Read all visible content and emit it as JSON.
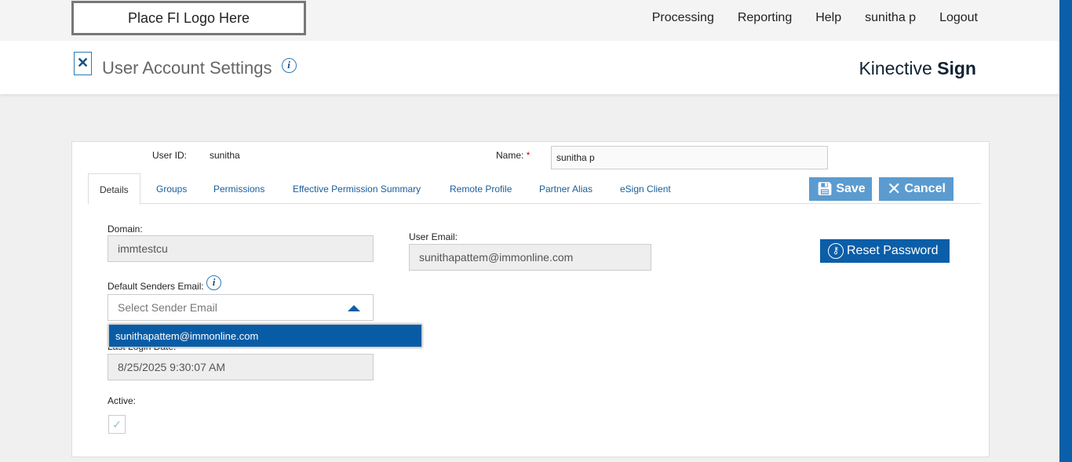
{
  "topbar": {
    "logo": "Place FI Logo Here",
    "nav": [
      "Processing",
      "Reporting",
      "Help",
      "sunitha p",
      "Logout"
    ]
  },
  "header": {
    "title": "User Account Settings",
    "brand_light": "Kinective",
    "brand_bold": "Sign"
  },
  "form": {
    "user_id_label": "User ID:",
    "user_id": "sunitha",
    "name_label": "Name:",
    "required": "*",
    "name_value": "sunitha p",
    "tabs": [
      "Details",
      "Groups",
      "Permissions",
      "Effective Permission Summary",
      "Remote Profile",
      "Partner Alias",
      "eSign Client"
    ],
    "save": "Save",
    "cancel": "Cancel",
    "reset": "Reset Password",
    "domain_label": "Domain:",
    "domain": "immtestcu",
    "email_label": "User Email:",
    "email": "sunithapattem@immonline.com",
    "sender_label": "Default Senders Email:",
    "sender_placeholder": "Select Sender Email",
    "sender_option": "sunithapattem@immonline.com",
    "login_label": "Last Login Date:",
    "login": "8/25/2025 9:30:07 AM",
    "active_label": "Active:",
    "active": true
  }
}
